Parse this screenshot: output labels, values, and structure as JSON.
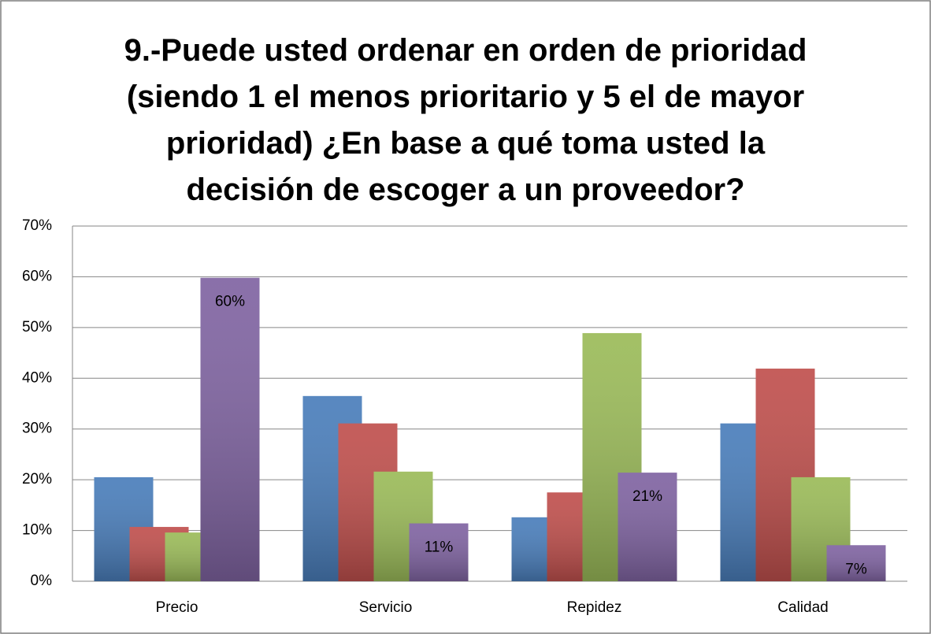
{
  "chart_data": {
    "type": "bar",
    "title": "9.-Puede usted ordenar en orden de prioridad\n(siendo 1 el menos prioritario y 5 el de mayor\nprioridad) ¿En base a qué toma usted la\ndecisión de escoger a un proveedor?",
    "categories": [
      "Precio",
      "Servicio",
      "Repidez",
      "Calidad"
    ],
    "series": [
      {
        "color": "#4a7ebb",
        "values": [
          20.5,
          36.5,
          12.6,
          31.1
        ]
      },
      {
        "color": "#c0504d",
        "values": [
          10.7,
          31.1,
          17.5,
          41.9
        ]
      },
      {
        "color": "#9bbb59",
        "values": [
          9.6,
          21.6,
          48.9,
          20.5
        ]
      },
      {
        "color": "#8064a2",
        "values": [
          59.8,
          11.4,
          21.4,
          7.1
        ],
        "value_labels": [
          "60%",
          "11%",
          "21%",
          "7%"
        ]
      }
    ],
    "ylim": [
      0,
      70
    ],
    "yticks": [
      {
        "value": 0,
        "label": "0%"
      },
      {
        "value": 10,
        "label": "10%"
      },
      {
        "value": 20,
        "label": "20%"
      },
      {
        "value": 30,
        "label": "30%"
      },
      {
        "value": 40,
        "label": "40%"
      },
      {
        "value": 50,
        "label": "50%"
      },
      {
        "value": 60,
        "label": "60%"
      },
      {
        "value": 70,
        "label": "70%"
      }
    ],
    "grid": true
  }
}
